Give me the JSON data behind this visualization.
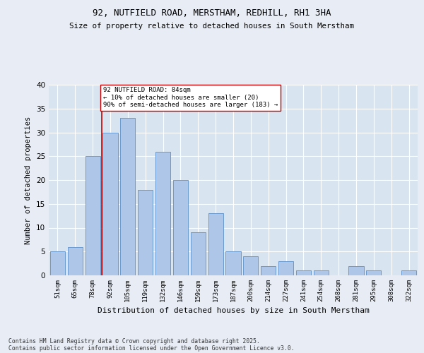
{
  "title1": "92, NUTFIELD ROAD, MERSTHAM, REDHILL, RH1 3HA",
  "title2": "Size of property relative to detached houses in South Merstham",
  "xlabel": "Distribution of detached houses by size in South Merstham",
  "ylabel": "Number of detached properties",
  "categories": [
    "51sqm",
    "65sqm",
    "78sqm",
    "92sqm",
    "105sqm",
    "119sqm",
    "132sqm",
    "146sqm",
    "159sqm",
    "173sqm",
    "187sqm",
    "200sqm",
    "214sqm",
    "227sqm",
    "241sqm",
    "254sqm",
    "268sqm",
    "281sqm",
    "295sqm",
    "308sqm",
    "322sqm"
  ],
  "values": [
    5,
    6,
    25,
    30,
    33,
    18,
    26,
    20,
    9,
    13,
    5,
    4,
    2,
    3,
    1,
    1,
    0,
    2,
    1,
    0,
    1
  ],
  "bar_color": "#aec6e8",
  "bar_edge_color": "#5b8fc9",
  "highlight_color": "#cc0000",
  "annotation_text": "92 NUTFIELD ROAD: 84sqm\n← 10% of detached houses are smaller (20)\n90% of semi-detached houses are larger (183) →",
  "annotation_box_color": "#ffffff",
  "annotation_box_edge_color": "#cc0000",
  "footer1": "Contains HM Land Registry data © Crown copyright and database right 2025.",
  "footer2": "Contains public sector information licensed under the Open Government Licence v3.0.",
  "background_color": "#e8edf5",
  "plot_background": "#d8e4f0",
  "ylim": [
    0,
    40
  ],
  "yticks": [
    0,
    5,
    10,
    15,
    20,
    25,
    30,
    35,
    40
  ]
}
